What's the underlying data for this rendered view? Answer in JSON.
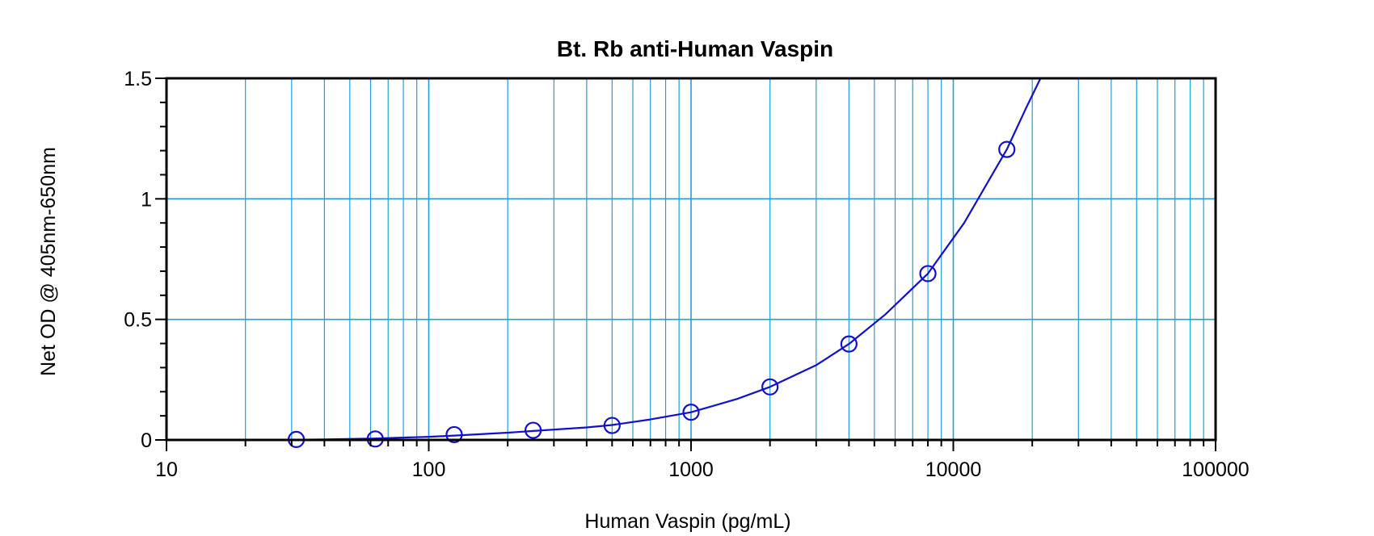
{
  "chart_data": {
    "type": "scatter",
    "title": "Bt. Rb anti-Human Vaspin",
    "xlabel": "Human Vaspin (pg/mL)",
    "ylabel": "Net OD @ 405nm-650nm",
    "x_scale": "log",
    "xlim": [
      10,
      100000
    ],
    "ylim": [
      0,
      1.5
    ],
    "x_ticks": [
      10,
      100,
      1000,
      10000,
      100000
    ],
    "x_tick_labels": [
      "10",
      "100",
      "1000",
      "10000",
      "100000"
    ],
    "y_ticks": [
      0,
      0.5,
      1,
      1.5
    ],
    "y_tick_labels": [
      "0",
      "0.5",
      "1",
      "1.5"
    ],
    "grid": true,
    "series": [
      {
        "points": [
          {
            "x": 31.25,
            "y": 0.002
          },
          {
            "x": 62.5,
            "y": 0.004
          },
          {
            "x": 125,
            "y": 0.022
          },
          {
            "x": 250,
            "y": 0.04
          },
          {
            "x": 500,
            "y": 0.06
          },
          {
            "x": 1000,
            "y": 0.115
          },
          {
            "x": 2000,
            "y": 0.22
          },
          {
            "x": 4000,
            "y": 0.398
          },
          {
            "x": 8000,
            "y": 0.69
          },
          {
            "x": 16000,
            "y": 1.205
          }
        ]
      }
    ],
    "fit_curve": {
      "x": [
        27,
        40,
        62.5,
        100,
        125,
        200,
        250,
        400,
        500,
        700,
        1000,
        1500,
        2000,
        3000,
        4000,
        5500,
        8000,
        11000,
        16000,
        19000,
        21500
      ],
      "y": [
        0.0,
        0.002,
        0.006,
        0.013,
        0.018,
        0.03,
        0.037,
        0.052,
        0.062,
        0.085,
        0.115,
        0.17,
        0.22,
        0.31,
        0.398,
        0.52,
        0.69,
        0.9,
        1.205,
        1.38,
        1.5
      ]
    },
    "colors": {
      "grid": "#1EA0DC",
      "series": "#1010D0",
      "axis": "#000000"
    }
  }
}
